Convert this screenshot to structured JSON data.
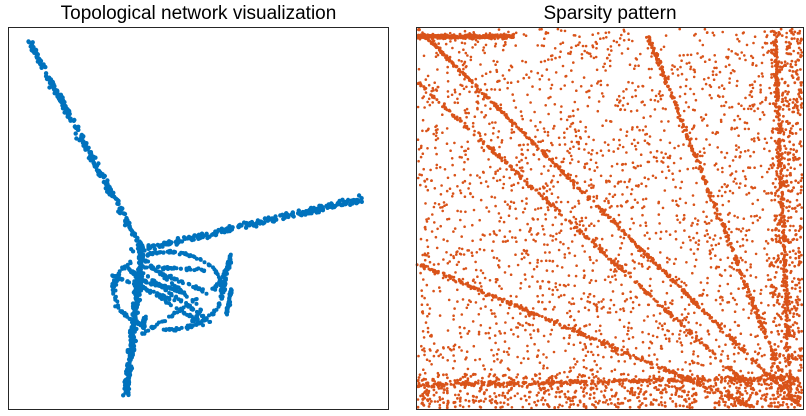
{
  "chart_data": [
    {
      "type": "scatter",
      "title": "Topological network visualization",
      "color": "#0072BD",
      "axes_visible": false,
      "grid": false,
      "legend": "none",
      "xlim": [
        0,
        1
      ],
      "ylim": [
        0,
        1
      ],
      "structure": {
        "description_hidden": true,
        "arms": [
          {
            "from": [
              0.35,
              0.42
            ],
            "to": [
              0.05,
              0.97
            ]
          },
          {
            "from": [
              0.35,
              0.42
            ],
            "to": [
              0.93,
              0.55
            ]
          },
          {
            "from": [
              0.35,
              0.42
            ],
            "to": [
              0.31,
              0.04
            ]
          }
        ],
        "mesh_center": [
          0.42,
          0.31
        ],
        "mesh_radius": [
          0.17,
          0.12
        ]
      }
    },
    {
      "type": "scatter",
      "title": "Sparsity pattern",
      "color": "#D95319",
      "axes_visible": false,
      "grid": false,
      "legend": "none",
      "xlim": [
        0,
        1
      ],
      "ylim": [
        0,
        1
      ],
      "structure": {
        "diagonal": true,
        "bands": [
          {
            "from": [
              0.0,
              0.86
            ],
            "to": [
              0.88,
              0.04
            ]
          },
          {
            "from": [
              0.6,
              0.98
            ],
            "to": [
              0.96,
              0.05
            ]
          },
          {
            "from": [
              0.93,
              0.98
            ],
            "to": [
              0.97,
              0.03
            ]
          },
          {
            "from": [
              0.0,
              0.38
            ],
            "to": [
              0.88,
              0.0
            ]
          },
          {
            "from": [
              0.0,
              0.98
            ],
            "to": [
              0.25,
              0.98
            ]
          },
          {
            "from": [
              0.0,
              0.06
            ],
            "to": [
              0.99,
              0.08
            ]
          }
        ],
        "random_density": 0.6
      }
    }
  ]
}
